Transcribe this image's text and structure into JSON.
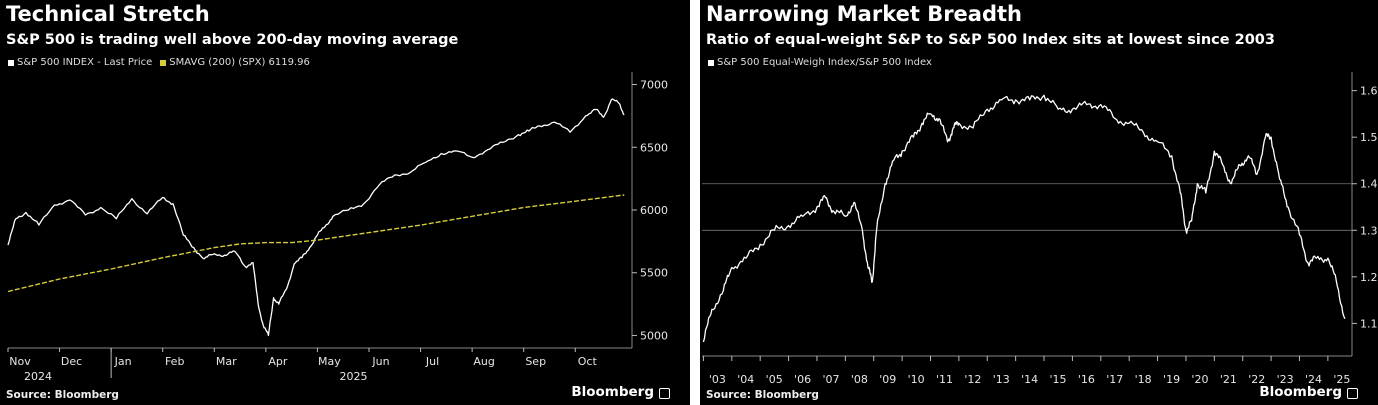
{
  "chart_data": [
    {
      "type": "line",
      "title": "Technical Stretch",
      "subtitle": "S&P 500 is trading well above 200-day moving average",
      "legend": [
        "S&P 500 INDEX - Last Price",
        "SMAVG (200) (SPX) 6119.96"
      ],
      "x_ticks": [
        "Nov",
        "Dec",
        "Jan",
        "Feb",
        "Mar",
        "Apr",
        "May",
        "Jun",
        "Jul",
        "Aug",
        "Sep",
        "Oct"
      ],
      "year_labels": [
        "2024",
        "2025"
      ],
      "y_ticks": [
        5000,
        5500,
        6000,
        6500,
        7000
      ],
      "ylim": [
        4900,
        7100
      ],
      "xlim": [
        0,
        12.1
      ],
      "series": [
        {
          "name": "S&P 500 INDEX - Last Price",
          "color": "#ffffff",
          "x": [
            0,
            0.15,
            0.35,
            0.6,
            0.9,
            1.2,
            1.5,
            1.8,
            2.1,
            2.4,
            2.7,
            3.0,
            3.2,
            3.4,
            3.6,
            3.8,
            4.0,
            4.2,
            4.4,
            4.6,
            4.75,
            4.85,
            4.95,
            5.05,
            5.15,
            5.25,
            5.4,
            5.55,
            5.7,
            5.85,
            6.0,
            6.15,
            6.3,
            6.6,
            6.9,
            7.2,
            7.5,
            7.8,
            8.1,
            8.4,
            8.7,
            9.0,
            9.3,
            9.6,
            9.9,
            10.1,
            10.3,
            10.6,
            10.9,
            11.2,
            11.4,
            11.55,
            11.7,
            11.85,
            11.95
          ],
          "values": [
            5720,
            5930,
            5980,
            5880,
            6040,
            6080,
            5960,
            6020,
            5930,
            6090,
            5970,
            6100,
            6050,
            5800,
            5700,
            5610,
            5650,
            5640,
            5670,
            5550,
            5580,
            5250,
            5080,
            5000,
            5300,
            5250,
            5370,
            5570,
            5620,
            5700,
            5800,
            5870,
            5950,
            6000,
            6050,
            6200,
            6280,
            6300,
            6380,
            6450,
            6470,
            6420,
            6480,
            6540,
            6600,
            6630,
            6670,
            6700,
            6620,
            6750,
            6800,
            6740,
            6880,
            6850,
            6760
          ]
        },
        {
          "name": "SMAVG (200) (SPX) 6119.96",
          "color": "#d4cc3a",
          "x": [
            0,
            1,
            2,
            3,
            3.5,
            4,
            4.5,
            5,
            5.5,
            6,
            6.5,
            7,
            8,
            9,
            10,
            11,
            11.95
          ],
          "values": [
            5350,
            5450,
            5530,
            5620,
            5660,
            5700,
            5730,
            5740,
            5740,
            5760,
            5790,
            5820,
            5880,
            5950,
            6020,
            6070,
            6120
          ]
        }
      ],
      "source": "Source: Bloomberg",
      "brand": "Bloomberg",
      "legend_placement": "top-left",
      "grid": "none"
    },
    {
      "type": "line",
      "title": "Narrowing Market Breadth",
      "subtitle": "Ratio of equal-weight S&P to S&P 500 Index sits at lowest since 2003",
      "legend": [
        "S&P 500 Equal-Weigh Index/S&P 500 Index"
      ],
      "x_ticks": [
        "'03",
        "'04",
        "'05",
        "'06",
        "'07",
        "'08",
        "'09",
        "'10",
        "'11",
        "'12",
        "'13",
        "'14",
        "'15",
        "'16",
        "'17",
        "'18",
        "'19",
        "'20",
        "'21",
        "'22",
        "'23",
        "'24",
        "'25"
      ],
      "y_ticks": [
        1.1,
        1.2,
        1.3,
        1.4,
        1.5,
        1.6
      ],
      "ylim": [
        1.03,
        1.64
      ],
      "xlim": [
        2002.95,
        2025.85
      ],
      "gridlines": [
        1.4,
        1.3
      ],
      "series": [
        {
          "name": "S&P 500 Equal-Weigh Index/S&P 500 Index",
          "color": "#ffffff",
          "x": [
            2003.0,
            2003.3,
            2003.7,
            2004.0,
            2004.5,
            2005.0,
            2005.5,
            2006.0,
            2006.5,
            2007.0,
            2007.3,
            2007.6,
            2008.0,
            2008.3,
            2008.6,
            2008.8,
            2008.95,
            2009.1,
            2009.4,
            2009.7,
            2010.0,
            2010.4,
            2010.7,
            2011.0,
            2011.3,
            2011.6,
            2011.8,
            2012.0,
            2012.5,
            2013.0,
            2013.5,
            2014.0,
            2014.5,
            2015.0,
            2015.5,
            2016.0,
            2016.5,
            2017.0,
            2017.5,
            2018.0,
            2018.5,
            2019.0,
            2019.5,
            2019.8,
            2020.0,
            2020.2,
            2020.4,
            2020.7,
            2021.0,
            2021.3,
            2021.6,
            2021.9,
            2022.2,
            2022.5,
            2022.8,
            2023.0,
            2023.3,
            2023.6,
            2024.0,
            2024.3,
            2024.6,
            2025.0,
            2025.3,
            2025.6
          ],
          "values": [
            1.06,
            1.13,
            1.17,
            1.22,
            1.24,
            1.27,
            1.3,
            1.31,
            1.33,
            1.35,
            1.37,
            1.34,
            1.33,
            1.36,
            1.3,
            1.22,
            1.19,
            1.3,
            1.4,
            1.45,
            1.47,
            1.5,
            1.53,
            1.55,
            1.54,
            1.49,
            1.52,
            1.53,
            1.52,
            1.56,
            1.58,
            1.58,
            1.58,
            1.59,
            1.56,
            1.56,
            1.57,
            1.57,
            1.54,
            1.53,
            1.51,
            1.49,
            1.46,
            1.38,
            1.3,
            1.32,
            1.4,
            1.38,
            1.47,
            1.44,
            1.4,
            1.44,
            1.46,
            1.42,
            1.5,
            1.5,
            1.41,
            1.35,
            1.29,
            1.23,
            1.24,
            1.24,
            1.19,
            1.11
          ]
        }
      ],
      "source": "Source: Bloomberg",
      "brand": "Bloomberg",
      "legend_placement": "top-left"
    }
  ]
}
